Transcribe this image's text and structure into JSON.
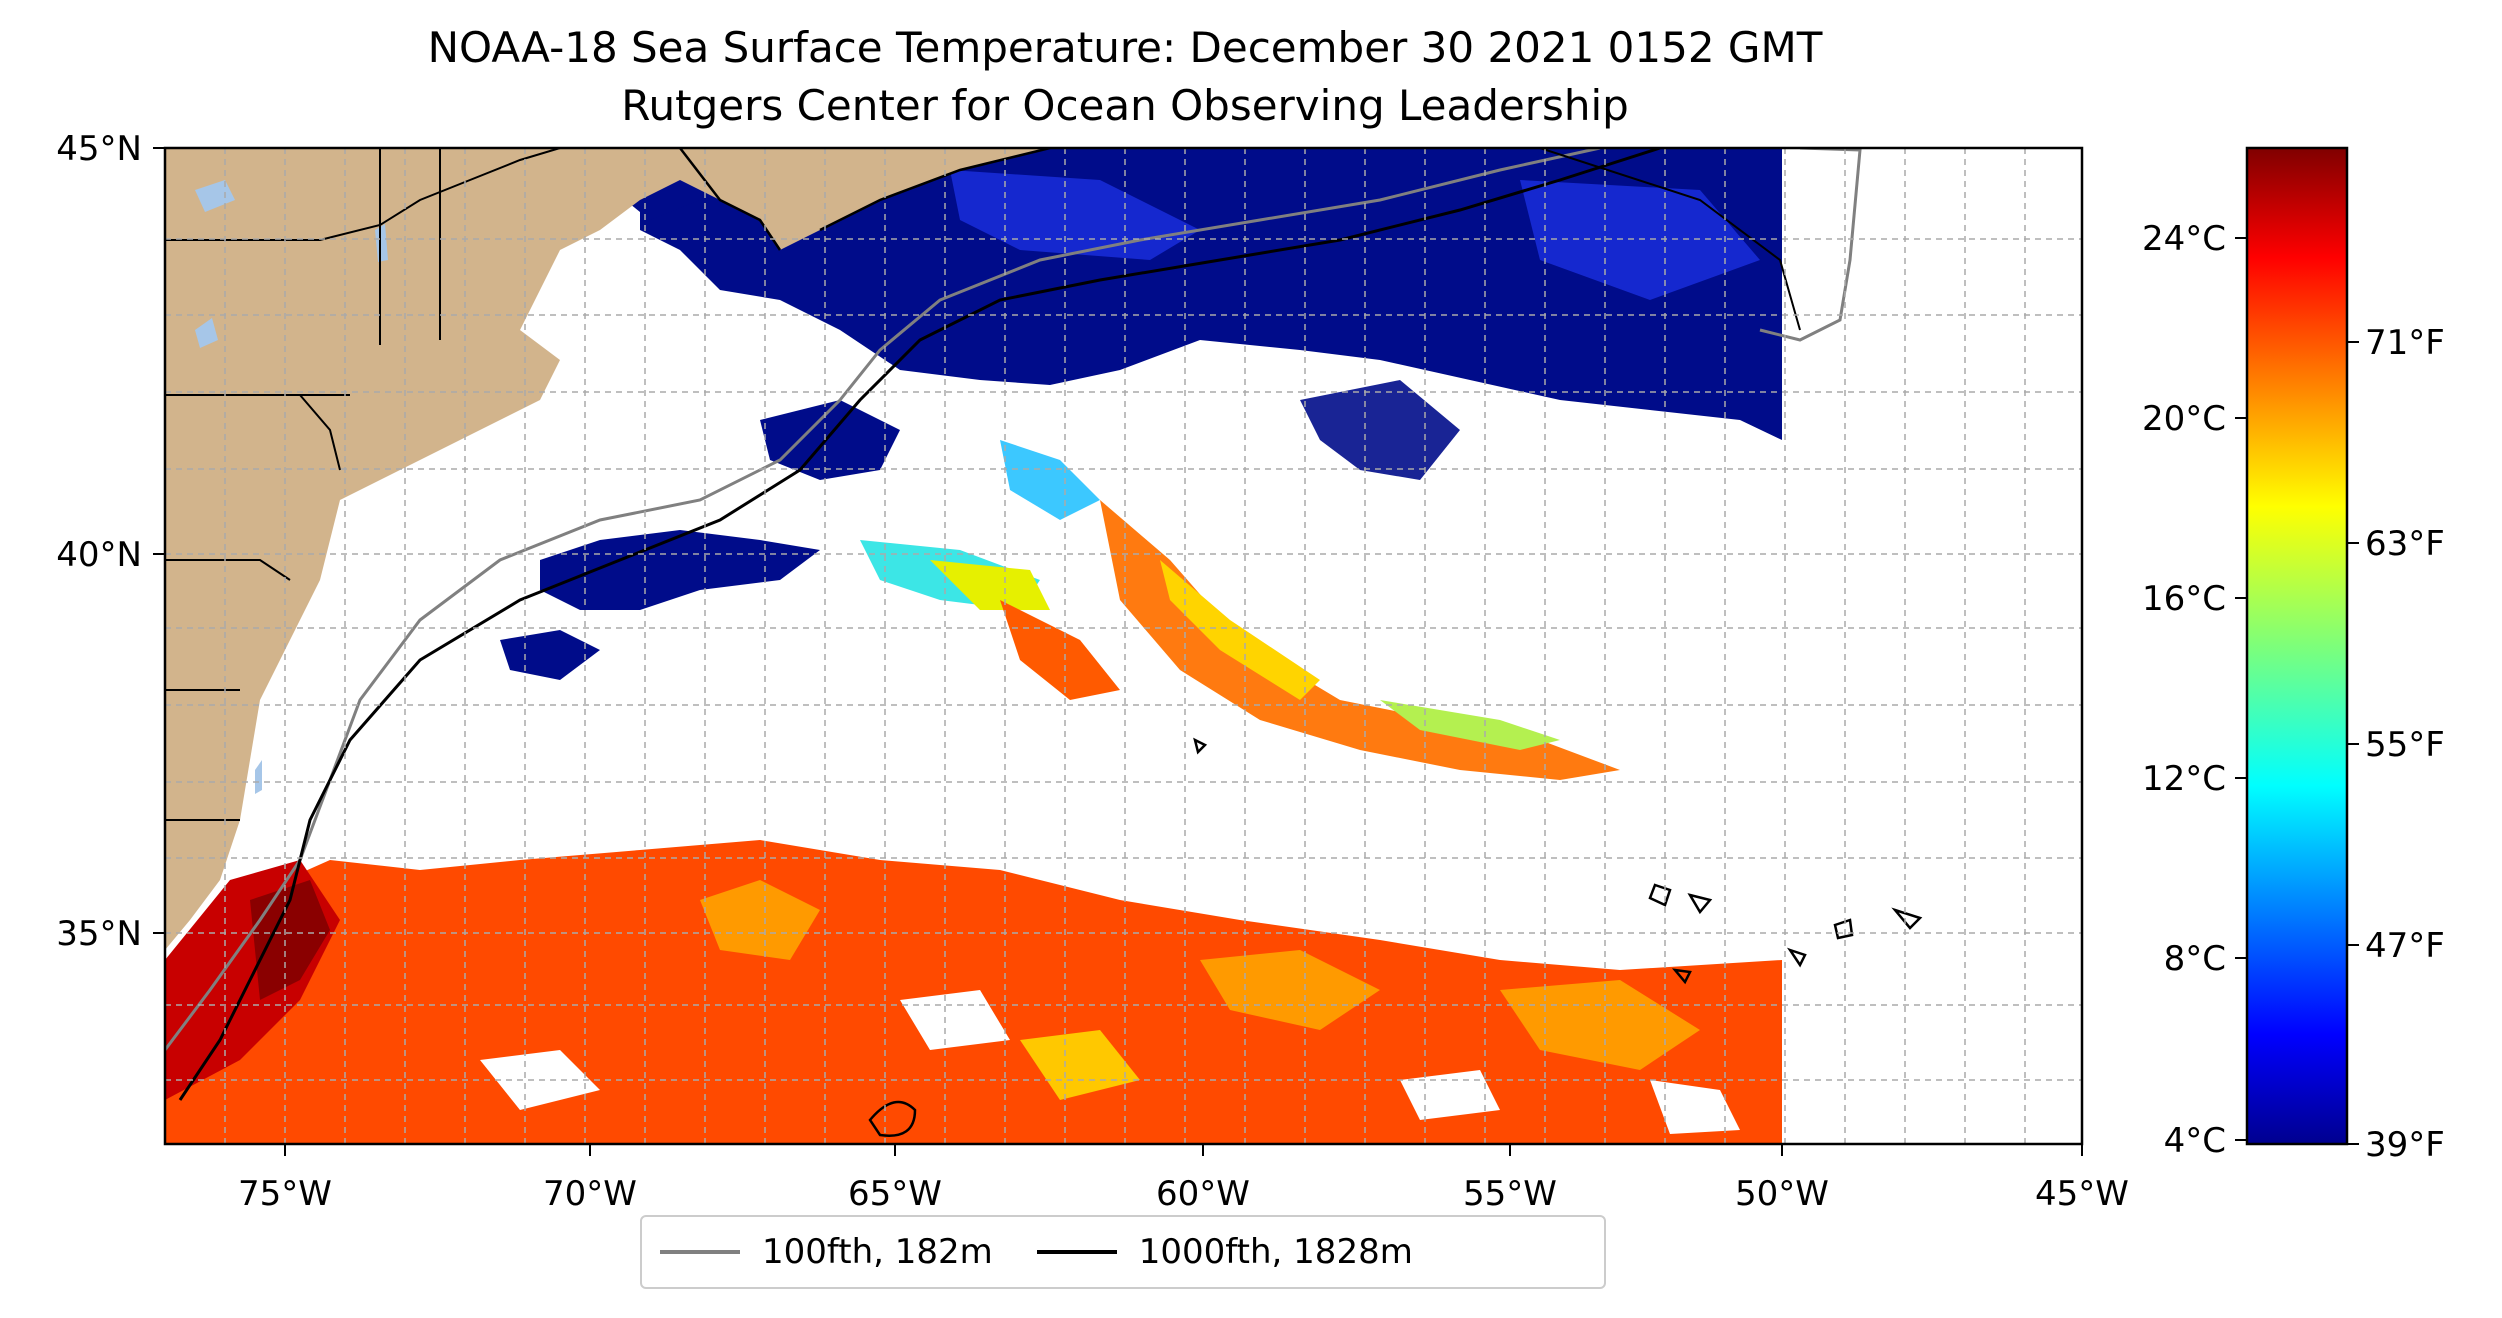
{
  "title": "NOAA-18 Sea Surface Temperature: December 30 2021 0152 GMT",
  "subtitle": "Rutgers Center for Ocean Observing Leadership",
  "map": {
    "lon_range": [
      -77,
      -45
    ],
    "lat_range": [
      32.5,
      45
    ],
    "x_ticks": [
      "75°W",
      "70°W",
      "65°W",
      "60°W",
      "55°W",
      "50°W",
      "45°W"
    ],
    "y_ticks": [
      "45°N",
      "40°N",
      "35°N"
    ],
    "gridlines": true,
    "land_color": "#d2b48c",
    "lake_color": "#a6c6e8"
  },
  "legend": {
    "items": [
      {
        "label": "100fth, 182m",
        "color": "#808080"
      },
      {
        "label": "1000fth, 1828m",
        "color": "#000000"
      }
    ],
    "placement": "bottom-center"
  },
  "colorbar": {
    "colormap": "jet",
    "celsius_ticks": [
      "24°C",
      "20°C",
      "16°C",
      "12°C",
      "8°C",
      "4°C"
    ],
    "fahrenheit_ticks": [
      "71°F",
      "63°F",
      "55°F",
      "47°F",
      "39°F"
    ],
    "range_celsius": [
      3.9,
      26.0
    ]
  }
}
